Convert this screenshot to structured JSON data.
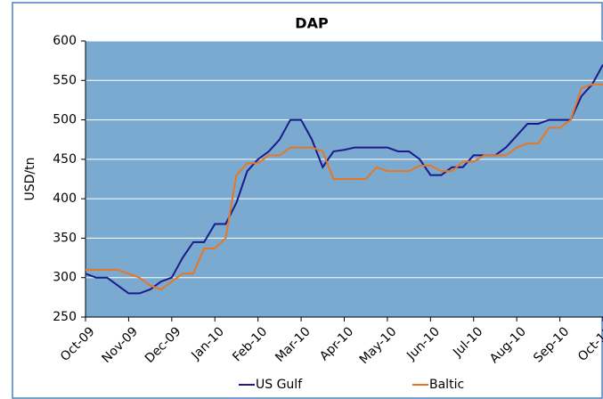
{
  "chart_data": {
    "type": "line",
    "title": "DAP",
    "y_label": "USD/tn",
    "categories": [
      "Oct-09",
      null,
      null,
      null,
      "Nov-09",
      null,
      null,
      null,
      "Dec-09",
      null,
      null,
      null,
      "Jan-10",
      null,
      null,
      null,
      "Feb-10",
      null,
      null,
      null,
      "Mar-10",
      null,
      null,
      null,
      "Apr-10",
      null,
      null,
      null,
      "May-10",
      null,
      null,
      null,
      "Jun-10",
      null,
      null,
      null,
      "Jul-10",
      null,
      null,
      null,
      "Aug-10",
      null,
      null,
      null,
      "Sep-10",
      null,
      null,
      null,
      "Oct-10"
    ],
    "series": [
      {
        "name": "US Gulf",
        "color": "#1a1a8c",
        "values": [
          305,
          300,
          300,
          290,
          280,
          280,
          285,
          295,
          300,
          325,
          345,
          345,
          368,
          368,
          395,
          435,
          450,
          460,
          475,
          500,
          500,
          475,
          440,
          460,
          462,
          465,
          465,
          465,
          465,
          460,
          460,
          450,
          430,
          430,
          440,
          440,
          455,
          455,
          455,
          465,
          480,
          495,
          495,
          500,
          500,
          500,
          530,
          545,
          570
        ]
      },
      {
        "name": "Baltic",
        "color": "#e87722",
        "values": [
          310,
          310,
          310,
          310,
          305,
          300,
          290,
          285,
          295,
          305,
          305,
          337,
          337,
          350,
          430,
          445,
          445,
          455,
          455,
          465,
          465,
          465,
          460,
          425,
          425,
          425,
          425,
          440,
          435,
          435,
          435,
          442,
          442,
          435,
          435,
          447,
          447,
          455,
          455,
          455,
          465,
          470,
          470,
          490,
          490,
          500,
          540,
          545,
          545
        ]
      }
    ],
    "ylim": [
      250,
      600
    ],
    "yticks": [
      250,
      300,
      350,
      400,
      450,
      500,
      550,
      600
    ],
    "grid": true,
    "plot_background": "#7aaad0",
    "legend": "bottom"
  }
}
